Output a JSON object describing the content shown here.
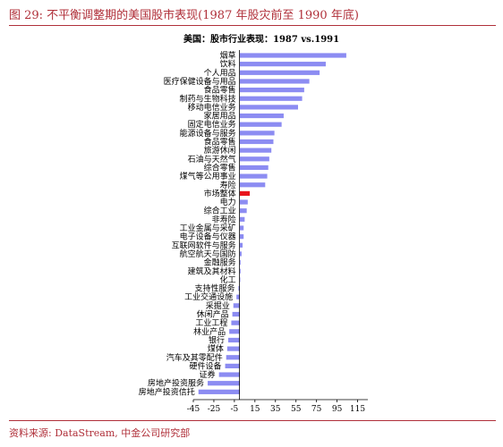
{
  "figure": {
    "title": "图 29:  不平衡调整期的美国股市表现(1987 年股灾前至 1990 年底)",
    "source": "资料来源: DataStream,  中金公司研究部"
  },
  "colors": {
    "bar": "#8c8cf2",
    "highlight": "#e8141e",
    "accent": "#b0303a"
  },
  "chart_data": {
    "type": "bar",
    "orientation": "horizontal",
    "title": "美国：股市行业表现：1987 vs.1991",
    "xlim": [
      -45,
      125
    ],
    "xticks": [
      -45,
      -25,
      -5,
      15,
      35,
      55,
      75,
      95,
      115
    ],
    "grid": false,
    "highlight_category": "市场整体",
    "categories": [
      "烟草",
      "饮料",
      "个人用品",
      "医疗保健设备与用品",
      "食品零售",
      "制药与生物科技",
      "移动电信业务",
      "家居用品",
      "固定电信业务",
      "能源设备与服务",
      "食品零售",
      "旅游休闲",
      "石油与天然气",
      "综合零售",
      "煤气等公用事业",
      "寿险",
      "市场整体",
      "电力",
      "综合工业",
      "非寿险",
      "工业金属与采矿",
      "电子设备与仪器",
      "互联网软件与服务",
      "航空航天与国防",
      "金融服务",
      "建筑及其材料",
      "化工",
      "支持性服务",
      "工业交通设施",
      "采掘业",
      "休闲产品",
      "工业工程",
      "林业产品",
      "银行",
      "煤体",
      "汽车及其零配件",
      "硬件设备",
      "证券",
      "房地产投资服务",
      "房地产投资信托"
    ],
    "values": [
      104,
      84,
      78,
      68,
      63,
      61,
      57,
      43,
      41,
      34,
      33,
      31,
      29,
      28,
      27,
      25,
      10,
      8,
      7,
      5,
      4,
      4,
      3,
      2,
      1,
      1,
      0,
      -1,
      -3,
      -6,
      -7,
      -8,
      -10,
      -11,
      -12,
      -13,
      -14,
      -20,
      -31,
      -40
    ]
  }
}
